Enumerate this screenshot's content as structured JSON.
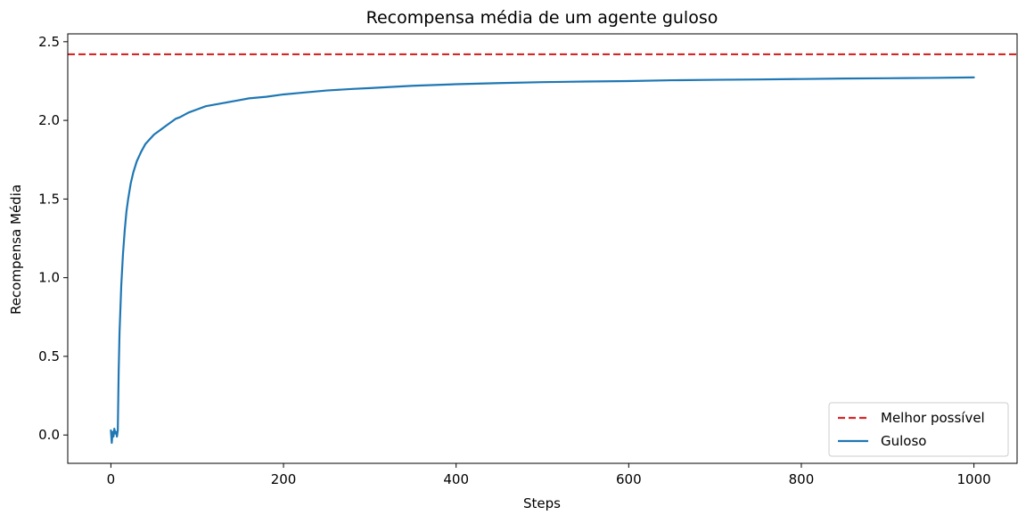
{
  "chart_data": {
    "type": "line",
    "title": "Recompensa média de um agente guloso",
    "xlabel": "Steps",
    "ylabel": "Recompensa Média",
    "xlim": [
      -50,
      1050
    ],
    "ylim": [
      -0.18,
      2.55
    ],
    "xticks": [
      0,
      200,
      400,
      600,
      800,
      1000
    ],
    "xtick_labels": [
      "0",
      "200",
      "400",
      "600",
      "800",
      "1000"
    ],
    "yticks": [
      0.0,
      0.5,
      1.0,
      1.5,
      2.0,
      2.5
    ],
    "ytick_labels": [
      "0.0",
      "0.5",
      "1.0",
      "1.5",
      "2.0",
      "2.5"
    ],
    "grid": false,
    "legend_position": "lower-right",
    "series": [
      {
        "name": "Melhor possível",
        "kind": "hline",
        "y": 2.42,
        "style": "dashed",
        "color": "#d62728"
      },
      {
        "name": "Guloso",
        "kind": "line",
        "style": "solid",
        "color": "#1f77b4",
        "x": [
          0,
          1,
          2,
          3,
          4,
          5,
          6,
          7,
          8,
          9,
          10,
          12,
          14,
          16,
          18,
          20,
          23,
          26,
          30,
          35,
          40,
          45,
          50,
          55,
          60,
          65,
          70,
          75,
          80,
          90,
          100,
          110,
          120,
          130,
          140,
          150,
          160,
          170,
          180,
          200,
          220,
          250,
          280,
          300,
          350,
          400,
          450,
          500,
          550,
          600,
          650,
          700,
          750,
          800,
          850,
          900,
          950,
          1000
        ],
        "y": [
          0.03,
          -0.05,
          0.02,
          -0.01,
          0.04,
          0.01,
          0.02,
          -0.01,
          0.03,
          0.4,
          0.65,
          0.95,
          1.15,
          1.3,
          1.42,
          1.5,
          1.6,
          1.67,
          1.74,
          1.8,
          1.85,
          1.88,
          1.91,
          1.93,
          1.95,
          1.97,
          1.99,
          2.01,
          2.02,
          2.05,
          2.07,
          2.09,
          2.1,
          2.11,
          2.12,
          2.13,
          2.14,
          2.145,
          2.15,
          2.165,
          2.175,
          2.19,
          2.2,
          2.205,
          2.22,
          2.23,
          2.237,
          2.243,
          2.247,
          2.25,
          2.255,
          2.258,
          2.26,
          2.263,
          2.266,
          2.268,
          2.27,
          2.273
        ]
      }
    ]
  }
}
